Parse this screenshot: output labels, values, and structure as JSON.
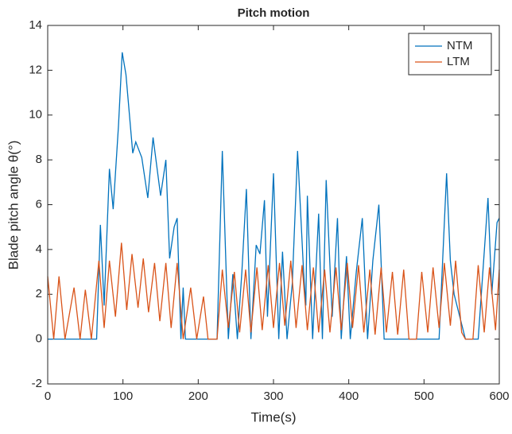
{
  "chart_data": {
    "type": "line",
    "title": "Pitch motion",
    "x_label": "Time(s)",
    "y_label": "Blade pitch angle θ(°)",
    "xlim": [
      0,
      600
    ],
    "xticks": [
      0,
      100,
      200,
      300,
      400,
      500,
      600
    ],
    "ylim": [
      -2,
      14
    ],
    "yticks": [
      -2,
      0,
      2,
      4,
      6,
      8,
      10,
      12,
      14
    ],
    "grid": false,
    "legend": "northeast",
    "series": [
      {
        "name": "NTM",
        "color": "#0072BD",
        "x": [
          0,
          65,
          70,
          75,
          82,
          87,
          94,
          99,
          104,
          113,
          117,
          125,
          133,
          140,
          150,
          157,
          162,
          168,
          172,
          177,
          180,
          183,
          225,
          232,
          240,
          246,
          252,
          258,
          264,
          270,
          277,
          282,
          288,
          292,
          300,
          307,
          312,
          318,
          325,
          332,
          340,
          343,
          345,
          352,
          360,
          365,
          370,
          378,
          385,
          390,
          397,
          402,
          410,
          418,
          425,
          432,
          440,
          447,
          520,
          530,
          535,
          540,
          555,
          572,
          585,
          590,
          597,
          600
        ],
        "values": [
          0,
          0,
          5.1,
          1.5,
          7.6,
          5.8,
          9.5,
          12.8,
          11.8,
          8.3,
          8.8,
          8.1,
          6.3,
          9.0,
          6.4,
          8.0,
          3.6,
          5.0,
          5.4,
          0,
          2.3,
          0,
          0,
          8.4,
          0,
          2.9,
          0,
          3.0,
          6.7,
          0,
          4.2,
          3.8,
          6.2,
          1.0,
          7.4,
          0,
          3.9,
          0,
          2.5,
          8.4,
          3.0,
          1.5,
          6.4,
          0,
          5.6,
          0,
          7.1,
          1.0,
          5.4,
          0,
          3.7,
          0,
          3.0,
          5.4,
          0,
          3.5,
          6.0,
          0,
          0,
          7.4,
          3.5,
          2.0,
          0,
          0,
          6.3,
          2.0,
          5.2,
          5.4
        ]
      },
      {
        "name": "LTM",
        "color": "#D95319",
        "x": [
          0,
          8,
          15,
          23,
          35,
          43,
          50,
          58,
          68,
          75,
          82,
          90,
          98,
          105,
          112,
          120,
          127,
          134,
          142,
          149,
          157,
          164,
          172,
          180,
          190,
          198,
          207,
          213,
          225,
          232,
          240,
          248,
          255,
          263,
          270,
          278,
          285,
          293,
          300,
          308,
          315,
          323,
          330,
          338,
          345,
          353,
          360,
          368,
          375,
          383,
          390,
          398,
          405,
          413,
          420,
          428,
          435,
          443,
          450,
          458,
          465,
          473,
          480,
          490,
          497,
          505,
          512,
          520,
          527,
          535,
          542,
          550,
          555,
          565,
          572,
          580,
          587,
          595,
          600
        ],
        "values": [
          2.8,
          0,
          2.8,
          0,
          2.3,
          0,
          2.2,
          0,
          3.5,
          0.5,
          3.5,
          1.0,
          4.3,
          1.3,
          3.8,
          1.4,
          3.6,
          1.2,
          3.4,
          0.8,
          3.4,
          0.5,
          3.4,
          0,
          2.3,
          0,
          1.9,
          0,
          0,
          3.1,
          0.5,
          3.0,
          0.3,
          3.1,
          0.3,
          3.2,
          0.4,
          3.3,
          0.5,
          3.4,
          0.6,
          3.5,
          0.5,
          3.3,
          0.4,
          3.2,
          0.3,
          3.1,
          0.3,
          3.2,
          0.4,
          3.4,
          0.5,
          3.3,
          0.3,
          3.1,
          0.2,
          3.2,
          0.3,
          3.0,
          0.2,
          3.1,
          0,
          0,
          3.0,
          0.3,
          3.2,
          0.5,
          3.4,
          0.6,
          3.5,
          0.3,
          0,
          0,
          3.3,
          0.3,
          3.2,
          0.4,
          3.1
        ]
      }
    ]
  }
}
